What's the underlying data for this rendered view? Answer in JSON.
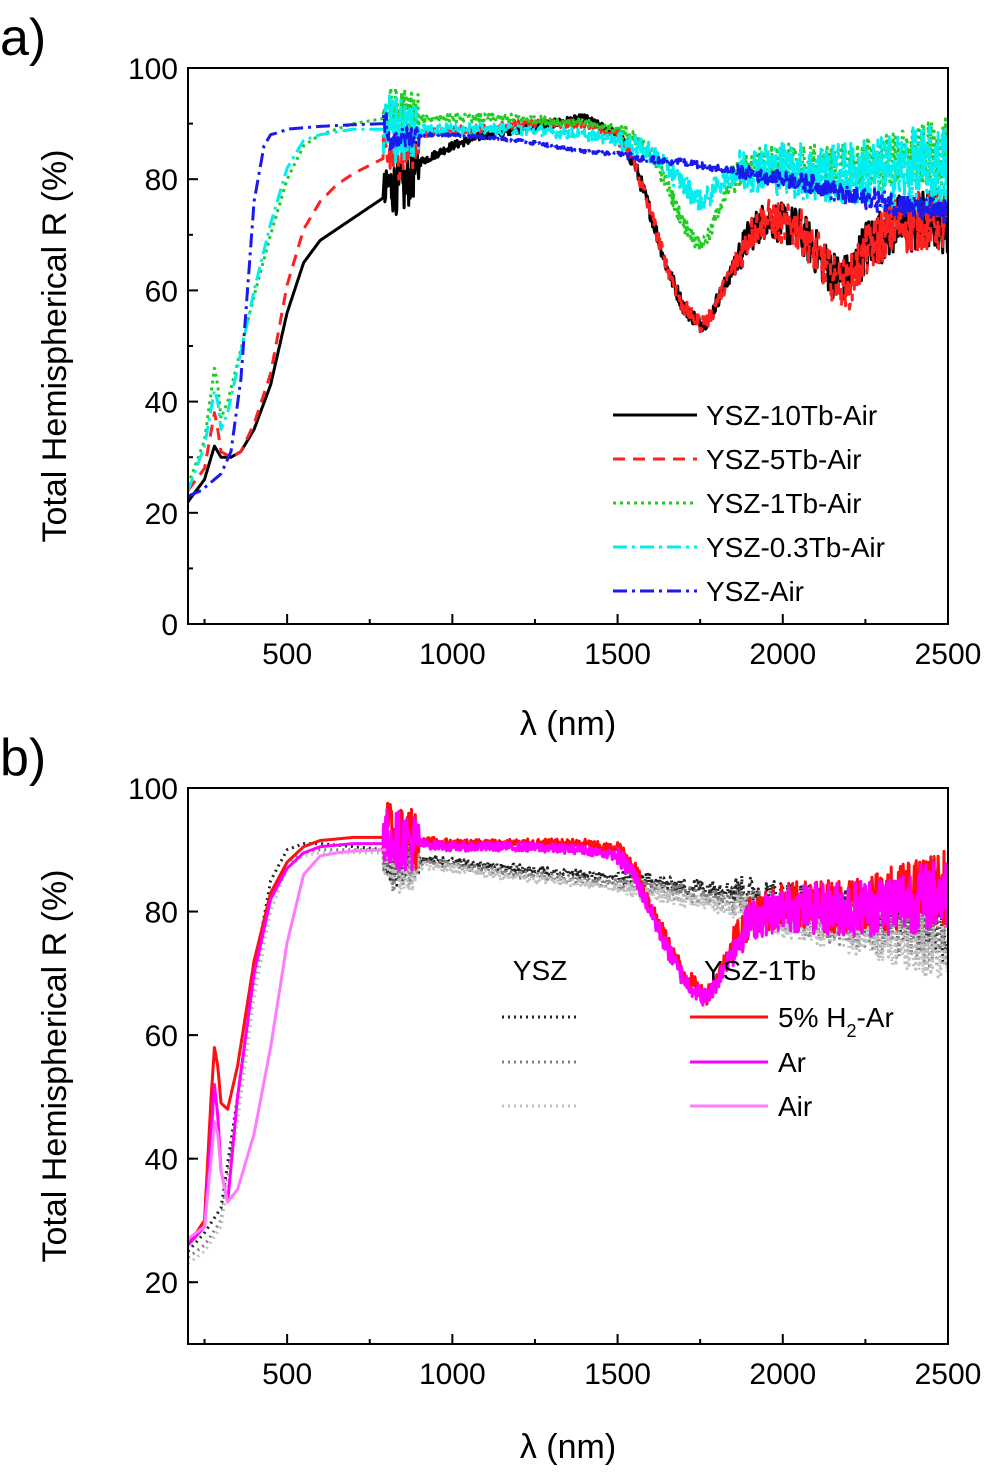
{
  "chart_data": [
    {
      "panel_label": "a)",
      "type": "line",
      "xlabel": "λ (nm)",
      "ylabel": "Total Hemispherical R (%)",
      "xlim": [
        200,
        2500
      ],
      "ylim": [
        0,
        100
      ],
      "xticks": [
        500,
        1000,
        1500,
        2000,
        2500
      ],
      "yticks": [
        0,
        20,
        40,
        60,
        80,
        100
      ],
      "legend_position": "bottom-right",
      "series": [
        {
          "name": "YSZ-10Tb-Air",
          "color": "#000000",
          "dash": "solid",
          "noise": 3,
          "x": [
            200,
            250,
            280,
            290,
            300,
            330,
            360,
            400,
            450,
            500,
            550,
            600,
            650,
            700,
            800,
            801,
            850,
            900,
            1000,
            1100,
            1200,
            1300,
            1400,
            1500,
            1550,
            1600,
            1650,
            1700,
            1750,
            1780,
            1800,
            1850,
            1900,
            1950,
            2000,
            2050,
            2100,
            2150,
            2200,
            2250,
            2300,
            2350,
            2400,
            2450,
            2500
          ],
          "y": [
            22,
            26,
            32,
            31,
            30,
            30,
            31,
            35,
            43,
            56,
            65,
            69,
            71,
            73,
            77,
            79,
            78,
            83,
            86,
            88,
            89,
            90,
            91,
            88,
            83,
            74,
            64,
            57,
            54,
            55,
            58,
            64,
            70,
            73,
            72,
            71,
            67,
            63,
            62,
            68,
            70,
            72,
            72,
            73,
            72
          ]
        },
        {
          "name": "YSZ-5Tb-Air",
          "color": "#ff2020",
          "dash": "12,8",
          "noise": 3,
          "x": [
            200,
            250,
            280,
            290,
            300,
            330,
            360,
            400,
            450,
            500,
            550,
            600,
            650,
            700,
            800,
            801,
            850,
            900,
            1000,
            1100,
            1200,
            1300,
            1400,
            1500,
            1550,
            1600,
            1650,
            1700,
            1750,
            1780,
            1800,
            1850,
            1900,
            1950,
            2000,
            2050,
            2100,
            2150,
            2200,
            2250,
            2300,
            2350,
            2400,
            2450,
            2500
          ],
          "y": [
            24,
            28,
            38,
            35,
            31,
            30,
            31,
            36,
            45,
            61,
            71,
            76,
            79,
            81,
            84,
            84,
            85,
            88,
            89,
            89,
            90,
            90,
            90,
            88,
            83,
            74,
            64,
            57,
            54,
            55,
            58,
            64,
            70,
            73,
            72,
            71,
            67,
            62,
            61,
            67,
            70,
            72,
            72,
            73,
            72
          ]
        },
        {
          "name": "YSZ-1Tb-Air",
          "color": "#22cc22",
          "dash": "3,4",
          "noise": 3,
          "x": [
            200,
            250,
            280,
            290,
            300,
            320,
            350,
            400,
            450,
            500,
            550,
            600,
            700,
            800,
            801,
            850,
            900,
            1000,
            1200,
            1400,
            1500,
            1600,
            1650,
            1700,
            1750,
            1780,
            1800,
            1850,
            1900,
            1950,
            2000,
            2100,
            2200,
            2300,
            2400,
            2500
          ],
          "y": [
            25,
            33,
            46,
            43,
            37,
            40,
            47,
            59,
            70,
            80,
            86,
            88,
            90,
            91,
            92,
            92,
            91,
            91,
            91,
            90,
            89,
            85,
            79,
            72,
            68,
            70,
            74,
            80,
            82,
            83,
            83,
            82,
            82,
            83,
            84,
            85
          ]
        },
        {
          "name": "YSZ-0.3Tb-Air",
          "color": "#00eeee",
          "dash": "14,5,3,5",
          "noise": 4,
          "x": [
            200,
            250,
            280,
            290,
            300,
            320,
            350,
            400,
            450,
            500,
            550,
            600,
            700,
            800,
            801,
            850,
            900,
            1000,
            1200,
            1400,
            1500,
            1600,
            1650,
            1700,
            1750,
            1780,
            1800,
            1850,
            1900,
            1950,
            2000,
            2100,
            2200,
            2300,
            2400,
            2500
          ],
          "y": [
            24,
            32,
            42,
            40,
            35,
            38,
            46,
            60,
            72,
            82,
            87,
            88,
            89,
            89,
            90,
            89,
            89,
            89,
            89,
            88,
            87,
            85,
            82,
            79,
            76,
            77,
            79,
            81,
            82,
            82,
            82,
            81,
            81,
            81,
            82,
            82
          ]
        },
        {
          "name": "YSZ-Air",
          "color": "#1a1aee",
          "dash": "14,5,3,5",
          "noise": 1.2,
          "x": [
            200,
            240,
            280,
            300,
            330,
            360,
            380,
            400,
            430,
            450,
            480,
            500,
            600,
            700,
            800,
            801,
            900,
            1000,
            1100,
            1200,
            1300,
            1400,
            1500,
            1600,
            1700,
            1800,
            1900,
            2000,
            2100,
            2200,
            2300,
            2400,
            2500
          ],
          "y": [
            23,
            24,
            26,
            27,
            31,
            44,
            60,
            76,
            86,
            88,
            88.5,
            89,
            89.5,
            89.8,
            90,
            87,
            88,
            88,
            87.5,
            87,
            86,
            85,
            84.5,
            83.5,
            83,
            82,
            81,
            80,
            79,
            77,
            76,
            75,
            74
          ]
        }
      ]
    },
    {
      "panel_label": "b)",
      "type": "line",
      "xlabel": "λ (nm)",
      "ylabel": "Total Hemispherical R (%)",
      "xlim": [
        200,
        2500
      ],
      "ylim": [
        10,
        100
      ],
      "xticks": [
        500,
        1000,
        1500,
        2000,
        2500
      ],
      "yticks": [
        20,
        40,
        60,
        80,
        100
      ],
      "legend_position": "bottom-right",
      "legend_headers": [
        "YSZ",
        "YSZ-1Tb"
      ],
      "legend_labels": [
        {
          "text": "5% H",
          "subscript": "2",
          "suffix": "-Ar"
        },
        {
          "text": "Ar",
          "subscript": "",
          "suffix": ""
        },
        {
          "text": "Air",
          "subscript": "",
          "suffix": ""
        }
      ],
      "series": [
        {
          "group": "YSZ",
          "color": "#222222",
          "dash": "2,4",
          "noise": 2.5,
          "x": [
            200,
            250,
            300,
            350,
            400,
            450,
            500,
            550,
            600,
            800,
            801,
            900,
            1000,
            1200,
            1400,
            1600,
            1700,
            1800,
            1900,
            2000,
            2100,
            2200,
            2300,
            2400,
            2500
          ],
          "y": [
            25,
            28,
            32,
            50,
            70,
            85,
            90,
            91,
            91,
            90,
            88,
            88.5,
            88,
            87,
            86,
            85,
            84,
            84,
            83,
            82,
            81,
            81,
            80,
            79,
            76
          ]
        },
        {
          "group": "YSZ",
          "color": "#808080",
          "dash": "2,4",
          "noise": 2.5,
          "x": [
            200,
            250,
            300,
            350,
            400,
            450,
            500,
            550,
            600,
            800,
            801,
            900,
            1000,
            1200,
            1400,
            1600,
            1700,
            1800,
            1900,
            2000,
            2100,
            2200,
            2300,
            2400,
            2500
          ],
          "y": [
            24,
            26,
            30,
            48,
            68,
            82,
            88,
            89.5,
            90,
            90,
            87,
            88,
            87.5,
            86,
            85,
            84,
            83,
            82,
            81,
            80,
            79,
            78,
            77,
            76,
            74
          ]
        },
        {
          "group": "YSZ",
          "color": "#c0c0c0",
          "dash": "2,4",
          "noise": 2.5,
          "x": [
            200,
            250,
            300,
            350,
            400,
            450,
            500,
            550,
            600,
            800,
            801,
            900,
            1000,
            1200,
            1400,
            1600,
            1700,
            1800,
            1900,
            2000,
            2100,
            2200,
            2300,
            2400,
            2500
          ],
          "y": [
            23,
            25,
            29,
            46,
            66,
            80,
            87,
            89,
            89.5,
            89.5,
            86,
            87.5,
            87,
            85.5,
            84.5,
            83,
            82,
            81,
            80,
            79,
            78,
            77,
            76,
            75,
            73
          ]
        },
        {
          "group": "YSZ-1Tb",
          "legend_index": 0,
          "color": "#ff1010",
          "dash": "solid",
          "noise": 3,
          "x": [
            200,
            250,
            270,
            280,
            290,
            300,
            320,
            350,
            400,
            450,
            500,
            550,
            600,
            700,
            800,
            801,
            850,
            900,
            1000,
            1200,
            1400,
            1500,
            1550,
            1600,
            1650,
            1700,
            1750,
            1770,
            1800,
            1850,
            1900,
            1950,
            2000,
            2100,
            2200,
            2300,
            2400,
            2500
          ],
          "y": [
            26,
            30,
            50,
            58,
            55,
            49,
            48,
            55,
            72,
            83,
            88,
            90.5,
            91.5,
            92,
            92,
            93,
            92,
            91.5,
            91,
            91,
            91,
            90,
            87,
            81,
            75,
            70,
            67,
            66.5,
            69,
            75,
            79,
            80,
            81,
            81,
            81,
            82,
            83,
            84
          ]
        },
        {
          "group": "YSZ-1Tb",
          "legend_index": 1,
          "color": "#ff00ff",
          "dash": "solid",
          "noise": 3,
          "x": [
            200,
            250,
            270,
            280,
            290,
            300,
            320,
            350,
            400,
            450,
            500,
            550,
            600,
            700,
            800,
            801,
            850,
            900,
            1000,
            1200,
            1400,
            1500,
            1550,
            1600,
            1650,
            1700,
            1750,
            1770,
            1800,
            1850,
            1900,
            1950,
            2000,
            2100,
            2200,
            2300,
            2400,
            2500
          ],
          "y": [
            26,
            29,
            44,
            52,
            47,
            38,
            33,
            50,
            70,
            82,
            87,
            89.5,
            90.5,
            91,
            91,
            92,
            91.5,
            91,
            90.5,
            90.5,
            90,
            89,
            86,
            80,
            74,
            69,
            66.5,
            66,
            68.5,
            74,
            78.5,
            79.5,
            80.5,
            80.5,
            80.5,
            81,
            82,
            83
          ]
        },
        {
          "group": "YSZ-1Tb",
          "legend_index": 2,
          "color": "#ff7aff",
          "dash": "solid",
          "noise": 0,
          "x": [
            200,
            250,
            270,
            280,
            290,
            300,
            320,
            350,
            400,
            450,
            500,
            550,
            600,
            650,
            700,
            800
          ],
          "y": [
            27,
            29,
            40,
            46,
            44,
            38,
            33,
            35,
            44,
            58,
            75,
            86,
            89,
            89.5,
            89.8,
            90
          ]
        }
      ]
    }
  ]
}
